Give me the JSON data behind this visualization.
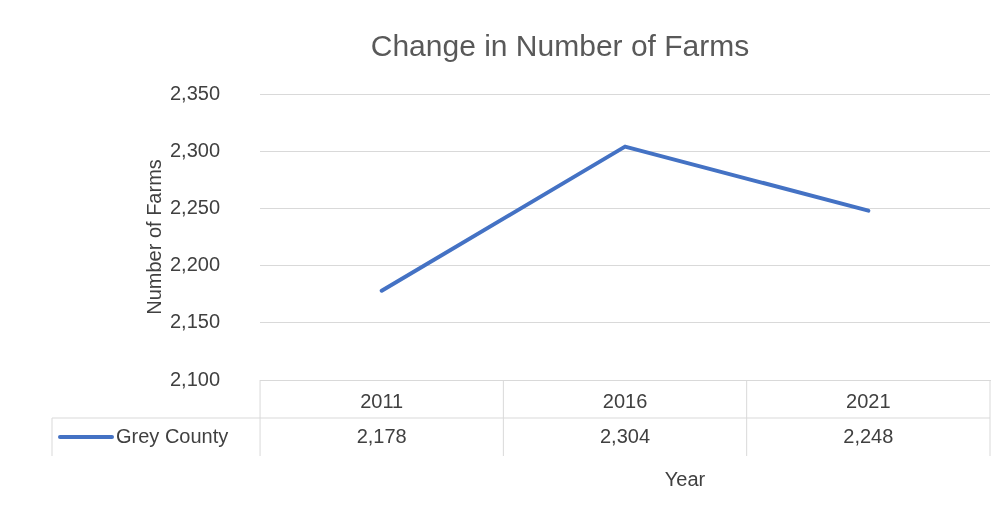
{
  "chart_data": {
    "type": "line",
    "title": "Change in Number of Farms",
    "xlabel": "Year",
    "ylabel": "Number of Farms",
    "categories": [
      "2011",
      "2016",
      "2021"
    ],
    "series": [
      {
        "name": "Grey County",
        "color": "#4472c4",
        "values": [
          2178,
          2304,
          2248
        ],
        "value_labels": [
          "2,178",
          "2,304",
          "2,248"
        ]
      }
    ],
    "ylim": [
      2100,
      2350
    ],
    "yticks": [
      {
        "value": 2100,
        "label": "2,100"
      },
      {
        "value": 2150,
        "label": "2,150"
      },
      {
        "value": 2200,
        "label": "2,200"
      },
      {
        "value": 2250,
        "label": "2,250"
      },
      {
        "value": 2300,
        "label": "2,300"
      },
      {
        "value": 2350,
        "label": "2,350"
      }
    ],
    "grid": "y",
    "legend": "bottom",
    "marker": "none",
    "line_style": "solid"
  }
}
